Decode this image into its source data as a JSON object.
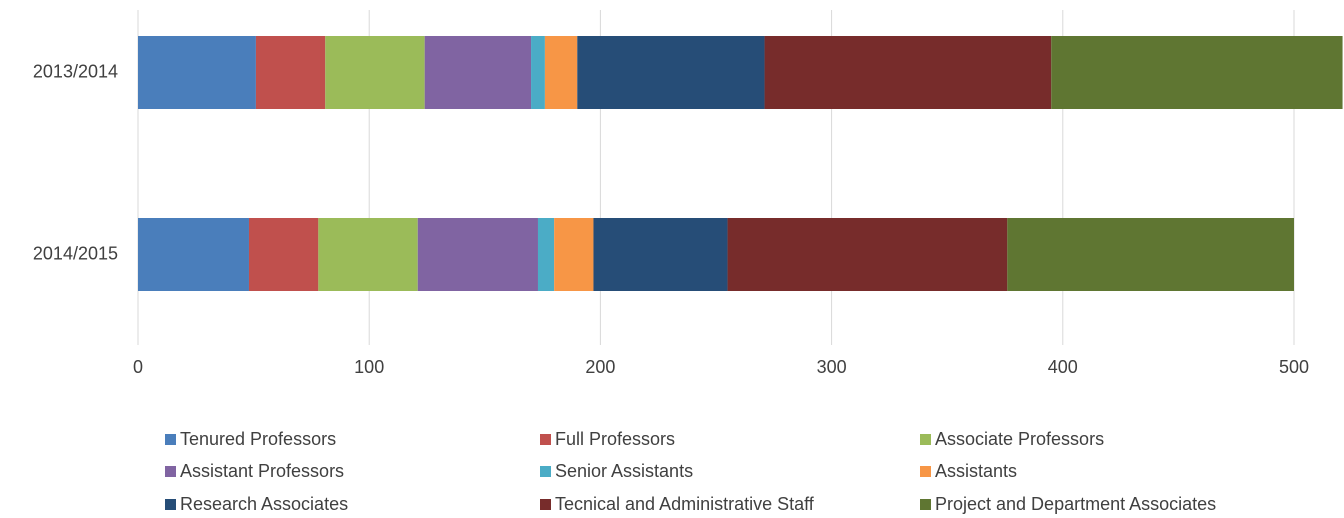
{
  "chart_data": {
    "type": "stacked_barh",
    "categories": [
      "2013/2014",
      "2014/2015"
    ],
    "series": [
      {
        "name": "Tenured Professors",
        "color": "#4a7ebb",
        "values": [
          51,
          48
        ]
      },
      {
        "name": "Full Professors",
        "color": "#c0504d",
        "values": [
          30,
          30
        ]
      },
      {
        "name": "Associate Professors",
        "color": "#9bbb59",
        "values": [
          43,
          43
        ]
      },
      {
        "name": "Assistant Professors",
        "color": "#8064a2",
        "values": [
          46,
          52
        ]
      },
      {
        "name": "Senior Assistants",
        "color": "#4bacc6",
        "values": [
          6,
          7
        ]
      },
      {
        "name": "Assistants",
        "color": "#f79646",
        "values": [
          14,
          17
        ]
      },
      {
        "name": "Research Associates",
        "color": "#264d77",
        "values": [
          81,
          58
        ]
      },
      {
        "name": "Tecnical and Administrative Staff",
        "color": "#772c2b",
        "values": [
          124,
          121
        ]
      },
      {
        "name": "Project and Department Associates",
        "color": "#5f7632",
        "values": [
          126,
          124
        ]
      }
    ],
    "xlim": [
      0,
      520
    ],
    "xticks": [
      0,
      100,
      200,
      300,
      400,
      500
    ],
    "grid": true
  }
}
